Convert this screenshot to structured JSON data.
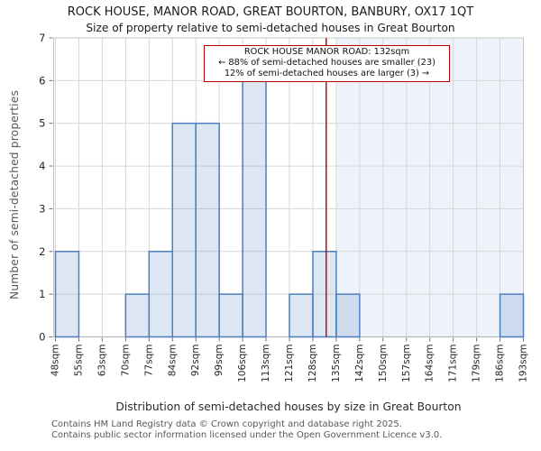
{
  "header": {
    "title": "ROCK HOUSE, MANOR ROAD, GREAT BOURTON, BANBURY, OX17 1QT",
    "subtitle": "Size of property relative to semi-detached houses in Great Bourton"
  },
  "annotation": {
    "line1": "ROCK HOUSE MANOR ROAD: 132sqm",
    "line2": "← 88% of semi-detached houses are smaller (23)",
    "line3": "12% of semi-detached houses are larger (3) →"
  },
  "footer": {
    "line1": "Contains HM Land Registry data © Crown copyright and database right 2025.",
    "line2": "Contains public sector information licensed under the Open Government Licence v3.0."
  },
  "chart_data": {
    "type": "bar",
    "title": "ROCK HOUSE, MANOR ROAD, GREAT BOURTON, BANBURY, OX17 1QT",
    "subtitle": "Size of property relative to semi-detached houses in Great Bourton",
    "xlabel": "Distribution of semi-detached houses by size in Great Bourton",
    "ylabel": "Number of semi-detached properties",
    "bin_edges_sqm": [
      48,
      55,
      63,
      70,
      77,
      84,
      92,
      99,
      106,
      113,
      121,
      128,
      135,
      142,
      150,
      157,
      164,
      171,
      179,
      186,
      193
    ],
    "categories": [
      "48sqm",
      "55sqm",
      "63sqm",
      "70sqm",
      "77sqm",
      "84sqm",
      "92sqm",
      "99sqm",
      "106sqm",
      "113sqm",
      "121sqm",
      "128sqm",
      "135sqm",
      "142sqm",
      "150sqm",
      "157sqm",
      "164sqm",
      "171sqm",
      "179sqm",
      "186sqm",
      "193sqm"
    ],
    "values": [
      2,
      0,
      0,
      1,
      2,
      5,
      5,
      1,
      6,
      0,
      1,
      2,
      1,
      0,
      0,
      0,
      0,
      0,
      0,
      1
    ],
    "ylim": [
      0,
      7
    ],
    "yticks": [
      0,
      1,
      2,
      3,
      4,
      5,
      6,
      7
    ],
    "grid": true,
    "legend": "none",
    "marker": {
      "sqm": 132,
      "label": "ROCK HOUSE MANOR ROAD: 132sqm",
      "smaller_pct": 88,
      "smaller_count": 23,
      "larger_pct": 12,
      "larger_count": 3,
      "color": "#b00000"
    },
    "shaded_region": {
      "from_sqm": 135,
      "to_sqm": 193,
      "color": "#eef3fb"
    },
    "colors": {
      "bar_fill": "rgba(99,140,199,0.22)",
      "bar_fill_hex": "#dce5f2",
      "bar_edge": "#4d7fbe",
      "marker_line": "#b00000",
      "gridline": "#d7d7d7",
      "spine": "#c4c4c4",
      "bottom_spine": "#b9b9b9",
      "tick_mark": "#6f6f6f",
      "tick_label": "#262626",
      "footer_text": "#58585a"
    }
  }
}
